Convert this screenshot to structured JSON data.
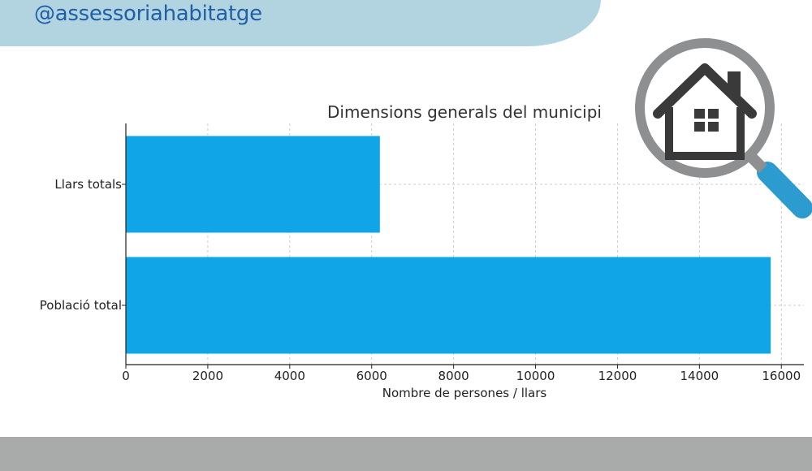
{
  "header": {
    "handle": "@assessoriahabitatge"
  },
  "icon": "magnifier-house-icon",
  "colors": {
    "bar": "#0fa5e6",
    "header": "#b2d4e0",
    "footer": "#a9abab",
    "handle": "#1f5fa8"
  },
  "chart_data": {
    "type": "bar",
    "orientation": "horizontal",
    "title": "Dimensions generals del municipi",
    "xlabel": "Nombre de persones / llars",
    "ylabel": "",
    "categories": [
      "Llars totals",
      "Població total"
    ],
    "values": [
      6200,
      15740
    ],
    "xlim": [
      0,
      16550
    ],
    "xticks": [
      0,
      2000,
      4000,
      6000,
      8000,
      10000,
      12000,
      14000,
      16000
    ],
    "grid": true
  }
}
